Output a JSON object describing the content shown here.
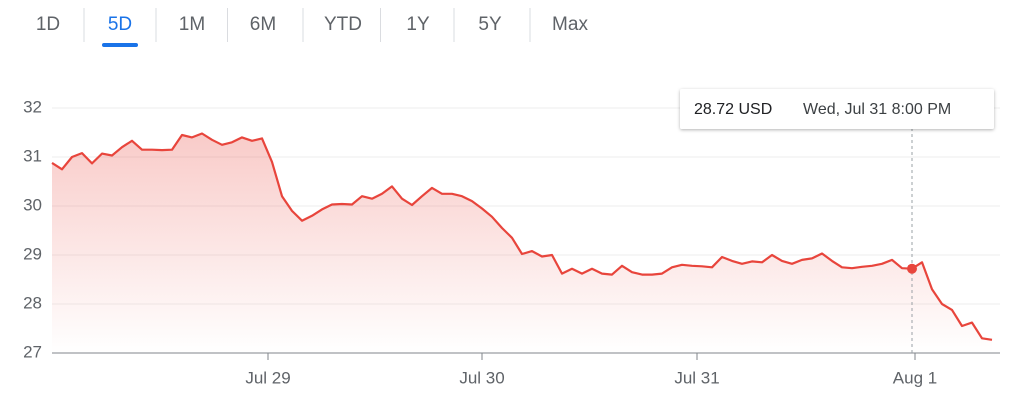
{
  "tabs": [
    {
      "label": "1D",
      "selected": false
    },
    {
      "label": "5D",
      "selected": true
    },
    {
      "label": "1M",
      "selected": false
    },
    {
      "label": "6M",
      "selected": false
    },
    {
      "label": "YTD",
      "selected": false
    },
    {
      "label": "1Y",
      "selected": false
    },
    {
      "label": "5Y",
      "selected": false
    },
    {
      "label": "Max",
      "selected": false
    }
  ],
  "chart_data": {
    "type": "line",
    "x": [
      0,
      1,
      2,
      3,
      4,
      5,
      6,
      7,
      8,
      9,
      10,
      11,
      12,
      13,
      14,
      15,
      16,
      17,
      18,
      19,
      20,
      21,
      22,
      23,
      24,
      25,
      26,
      27,
      28,
      29,
      30,
      31,
      32,
      33,
      34,
      35,
      36,
      37,
      38,
      39,
      40,
      41,
      42,
      43,
      44,
      45,
      46,
      47,
      48,
      49,
      50,
      51,
      52,
      53,
      54,
      55,
      56,
      57,
      58,
      59,
      60,
      61,
      62,
      63,
      64,
      65,
      66,
      67,
      68,
      69,
      70,
      71,
      72,
      73,
      74,
      75,
      76,
      77,
      78,
      79,
      80,
      81,
      82,
      83,
      84,
      85,
      86,
      87,
      88,
      89,
      90,
      91,
      92,
      93,
      94
    ],
    "series": [
      {
        "color": "#e8453c",
        "values": [
          30.88,
          30.75,
          31.0,
          31.08,
          30.87,
          31.07,
          31.03,
          31.2,
          31.33,
          31.15,
          31.15,
          31.14,
          31.15,
          31.45,
          31.4,
          31.48,
          31.35,
          31.25,
          31.3,
          31.4,
          31.33,
          31.38,
          30.9,
          30.2,
          29.9,
          29.7,
          29.8,
          29.93,
          30.03,
          30.04,
          30.03,
          30.2,
          30.15,
          30.25,
          30.4,
          30.15,
          30.02,
          30.2,
          30.37,
          30.25,
          30.25,
          30.2,
          30.1,
          29.95,
          29.78,
          29.55,
          29.35,
          29.02,
          29.08,
          28.97,
          29.0,
          28.62,
          28.72,
          28.62,
          28.72,
          28.62,
          28.6,
          28.78,
          28.65,
          28.6,
          28.6,
          28.62,
          28.75,
          28.8,
          28.78,
          28.77,
          28.75,
          28.96,
          28.88,
          28.82,
          28.87,
          28.85,
          29.0,
          28.88,
          28.82,
          28.9,
          28.93,
          29.03,
          28.88,
          28.75,
          28.73,
          28.76,
          28.78,
          28.82,
          28.9,
          28.73,
          28.72,
          28.85,
          28.3,
          28.0,
          27.88,
          27.55,
          27.62,
          27.3,
          27.27
        ]
      }
    ],
    "xlim": [
      0,
      94
    ],
    "xticks": [
      {
        "value": 21.6,
        "label": "Jul 29"
      },
      {
        "value": 43,
        "label": "Jul 30"
      },
      {
        "value": 64.5,
        "label": "Jul 31"
      },
      {
        "value": 86.3,
        "label": "Aug 1"
      }
    ],
    "ylim": [
      27,
      32
    ],
    "yticks": [
      27,
      28,
      29,
      30,
      31,
      32
    ],
    "grid": true,
    "cursor": {
      "x": 86,
      "value": 28.72,
      "value_label": "28.72 USD",
      "label": "Wed, Jul 31 8:00 PM"
    }
  }
}
